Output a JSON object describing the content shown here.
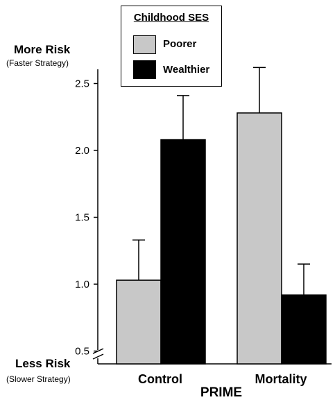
{
  "chart_data": {
    "type": "bar",
    "title": "",
    "xlabel": "PRIME",
    "ylabel_top": "More Risk",
    "ylabel_top_sub": "(Faster Strategy)",
    "ylabel_bottom": "Less Risk",
    "ylabel_bottom_sub": "(Slower Strategy)",
    "categories": [
      "Control",
      "Mortality"
    ],
    "series": [
      {
        "name": "Poorer",
        "color": "#c8c8c8",
        "values": [
          1.03,
          2.28
        ],
        "errors": [
          0.3,
          0.34
        ]
      },
      {
        "name": "Wealthier",
        "color": "#000000",
        "values": [
          2.08,
          0.92
        ],
        "errors": [
          0.33,
          0.23
        ]
      }
    ],
    "yticks": [
      "0.5",
      "1.0",
      "1.5",
      "2.0",
      "2.5"
    ],
    "ylim": [
      0.35,
      2.6
    ],
    "axis_break": true,
    "legend": {
      "title": "Childhood SES",
      "position": "top-center"
    }
  }
}
